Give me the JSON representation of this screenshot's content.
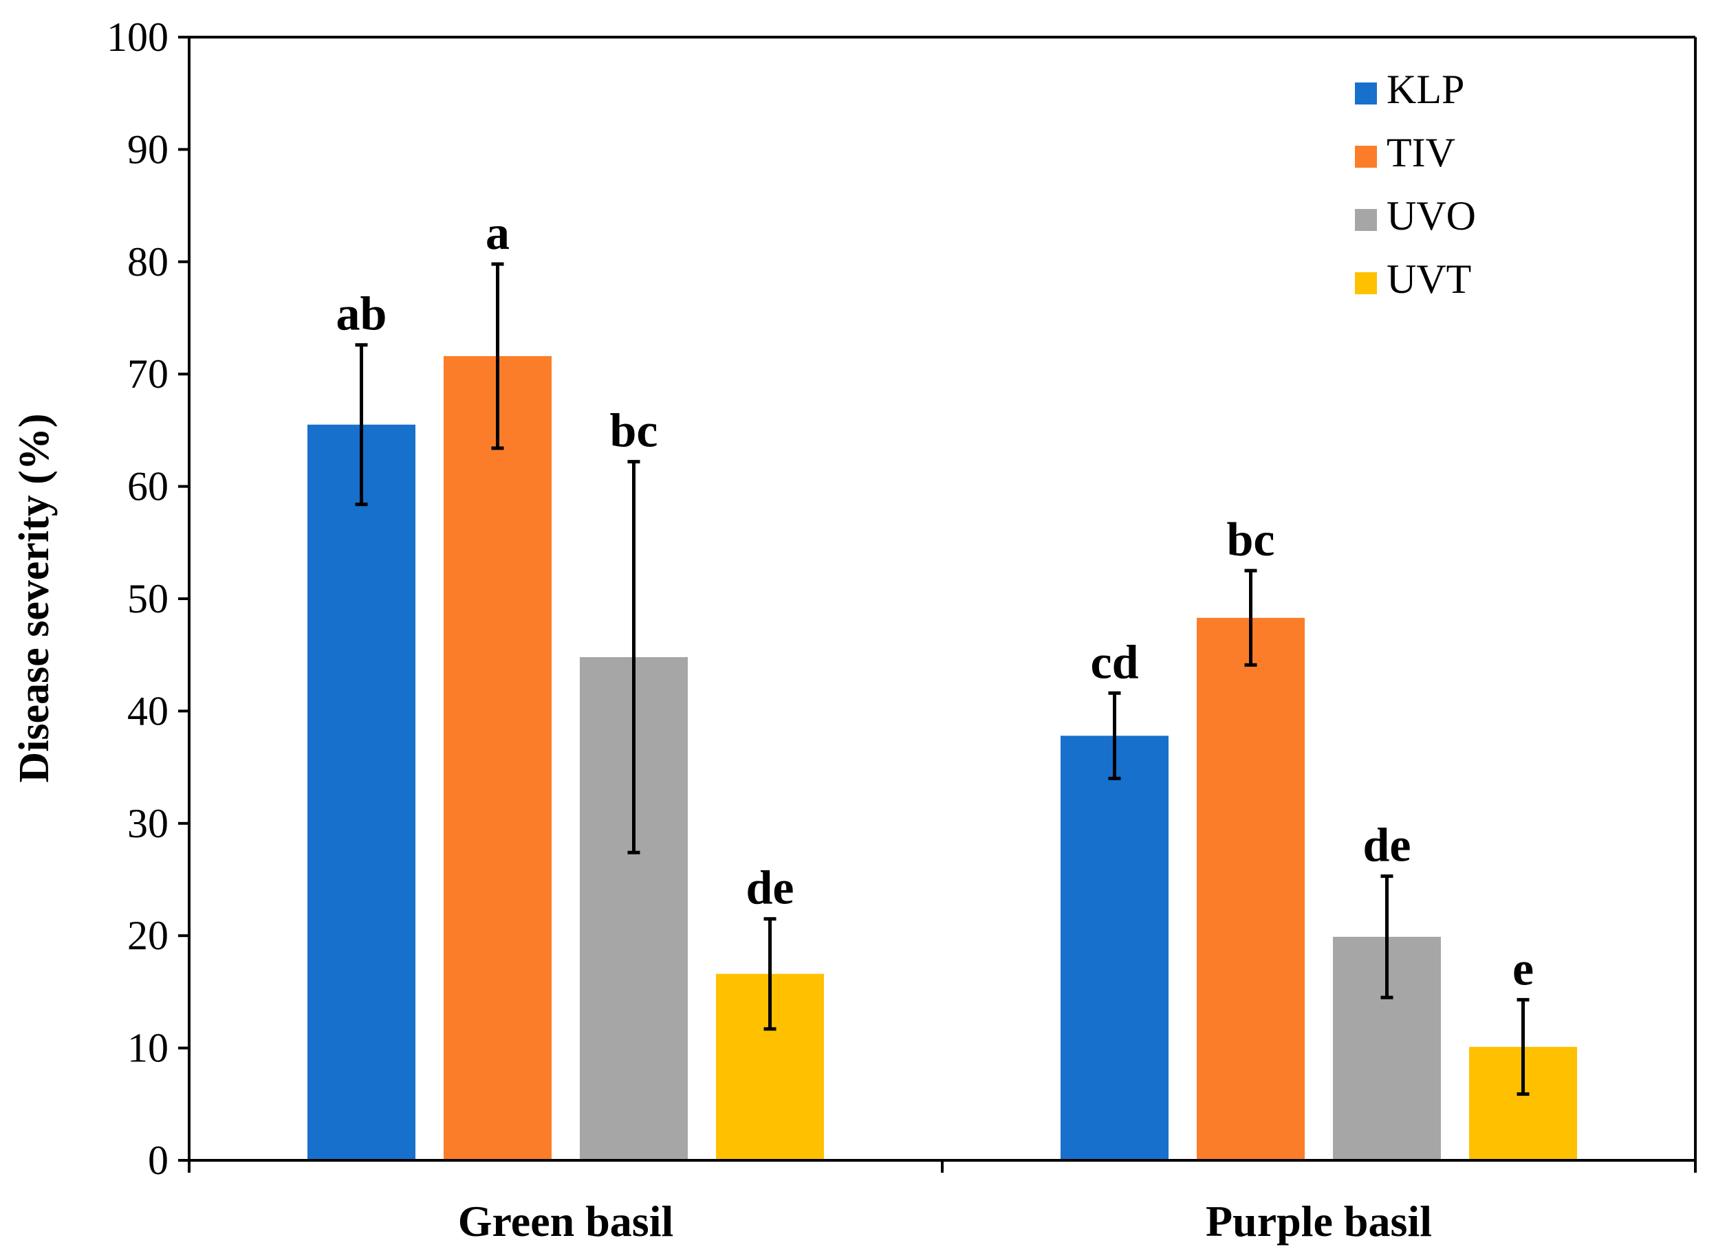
{
  "chart_data": {
    "type": "bar",
    "title": "",
    "xlabel": "",
    "ylabel": "Disease severity (%)",
    "ylim": [
      0,
      100
    ],
    "yticks": [
      0,
      10,
      20,
      30,
      40,
      50,
      60,
      70,
      80,
      90,
      100
    ],
    "grid": false,
    "legend_position": "top-right",
    "categories": [
      "Green basil",
      "Purple basil"
    ],
    "series": [
      {
        "name": "KLP",
        "color": "#1770CB",
        "values": [
          65.5,
          37.8
        ],
        "errors": [
          7.1,
          3.8
        ],
        "letters": [
          "ab",
          "cd"
        ]
      },
      {
        "name": "TIV",
        "color": "#FB7D29",
        "values": [
          71.6,
          48.3
        ],
        "errors": [
          8.2,
          4.2
        ],
        "letters": [
          "a",
          "bc"
        ]
      },
      {
        "name": "UVO",
        "color": "#A6A6A6",
        "values": [
          44.8,
          19.9
        ],
        "errors": [
          17.4,
          5.4
        ],
        "letters": [
          "bc",
          "de"
        ]
      },
      {
        "name": "UVT",
        "color": "#FFC000",
        "values": [
          16.6,
          10.1
        ],
        "errors": [
          4.9,
          4.2
        ],
        "letters": [
          "de",
          "e"
        ]
      }
    ]
  }
}
